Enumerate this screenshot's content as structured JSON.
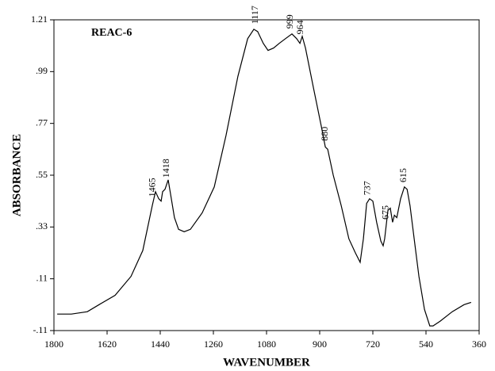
{
  "chart_data": {
    "type": "line",
    "title": "REAC-6",
    "x_label": "WAVENUMBER",
    "y_label": "ABSORBANCE",
    "xlim": [
      1800,
      360
    ],
    "xticks": [
      1800,
      1620,
      1440,
      1260,
      1080,
      900,
      720,
      540,
      360
    ],
    "ylim": [
      -0.11,
      1.21
    ],
    "yticks": [
      {
        "value": -0.11,
        "label": "-.11"
      },
      {
        "value": 0.11,
        "label": ".11"
      },
      {
        "value": 0.33,
        "label": ".33"
      },
      {
        "value": 0.55,
        "label": ".55"
      },
      {
        "value": 0.77,
        "label": ".77"
      },
      {
        "value": 0.99,
        "label": ".99"
      },
      1.21
    ],
    "color": "#000000",
    "peak_labels": [
      1465,
      1418,
      1117,
      999,
      964,
      880,
      737,
      675,
      615
    ],
    "x": [
      1789,
      1741,
      1687,
      1647,
      1593,
      1539,
      1499,
      1467,
      1456,
      1445,
      1437,
      1432,
      1424,
      1413,
      1405,
      1392,
      1378,
      1359,
      1338,
      1298,
      1257,
      1217,
      1177,
      1144,
      1123,
      1110,
      1091,
      1075,
      1056,
      1037,
      1016,
      994,
      978,
      967,
      959,
      948,
      921,
      895,
      881,
      873,
      854,
      827,
      801,
      779,
      763,
      752,
      741,
      731,
      720,
      707,
      693,
      685,
      680,
      669,
      661,
      653,
      647,
      639,
      626,
      613,
      604,
      594,
      580,
      564,
      545,
      527,
      516,
      492,
      451,
      411,
      387
    ],
    "values": [
      -0.04,
      -0.04,
      -0.03,
      0.0,
      0.04,
      0.12,
      0.23,
      0.42,
      0.48,
      0.45,
      0.44,
      0.48,
      0.49,
      0.53,
      0.47,
      0.37,
      0.32,
      0.31,
      0.32,
      0.39,
      0.5,
      0.72,
      0.97,
      1.13,
      1.17,
      1.16,
      1.11,
      1.08,
      1.09,
      1.11,
      1.13,
      1.15,
      1.13,
      1.11,
      1.14,
      1.09,
      0.92,
      0.76,
      0.67,
      0.66,
      0.55,
      0.42,
      0.28,
      0.22,
      0.18,
      0.28,
      0.43,
      0.45,
      0.44,
      0.35,
      0.27,
      0.25,
      0.28,
      0.4,
      0.41,
      0.35,
      0.38,
      0.37,
      0.45,
      0.5,
      0.49,
      0.42,
      0.28,
      0.12,
      -0.02,
      -0.09,
      -0.09,
      -0.07,
      -0.03,
      0.0,
      0.01
    ]
  }
}
